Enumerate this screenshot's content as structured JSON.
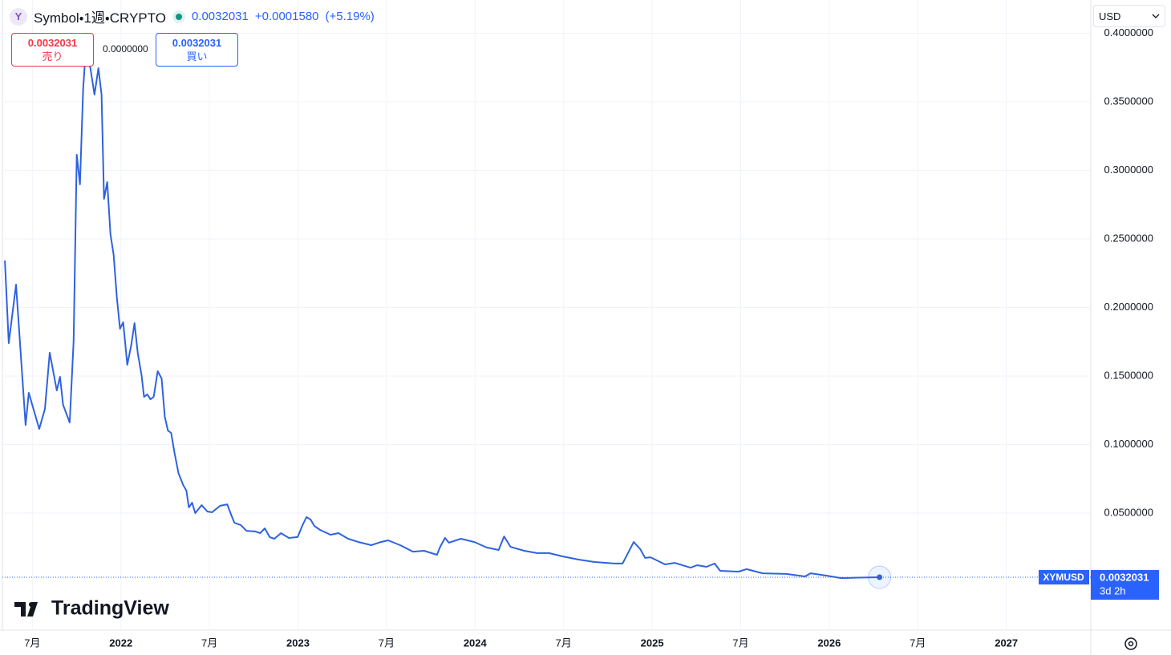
{
  "header": {
    "symbol": "Symbol・1週・CRYPTO",
    "icon": "Y",
    "price": "0.0032031",
    "change": "+0.0001580",
    "change_pct": "(+5.19%)"
  },
  "trade": {
    "sell_price": "0.0032031",
    "sell_label": "売り",
    "spread": "0.0000000",
    "buy_price": "0.0032031",
    "buy_label": "買い"
  },
  "currency": "USD",
  "branding": "TradingView",
  "chart_data": {
    "type": "line",
    "grid": true,
    "price_tag": {
      "symbol": "XYMUSD",
      "countdown": "3d 2h"
    },
    "xlim": [
      2021.331,
      2027.477
    ],
    "ylim": [
      -0.0348,
      0.4243
    ],
    "xticks": [
      {
        "value": 2021.5,
        "label": "7月"
      },
      2022,
      {
        "value": 2022.5,
        "label": "7月"
      },
      2023,
      {
        "value": 2023.5,
        "label": "7月"
      },
      2024,
      {
        "value": 2024.5,
        "label": "7月"
      },
      2025,
      {
        "value": 2025.5,
        "label": "7月"
      },
      2026,
      {
        "value": 2026.5,
        "label": "7月"
      },
      2027
    ],
    "yticks": [
      {
        "value": 0.05,
        "label": "0.0500000"
      },
      {
        "value": 0.1,
        "label": "0.1000000"
      },
      {
        "value": 0.15,
        "label": "0.1500000"
      },
      {
        "value": 0.2,
        "label": "0.2000000"
      },
      {
        "value": 0.25,
        "label": "0.2500000"
      },
      {
        "value": 0.3,
        "label": "0.3000000"
      },
      {
        "value": 0.35,
        "label": "0.3500000"
      },
      {
        "value": 0.4,
        "label": "0.4000000"
      }
    ],
    "series": [
      {
        "name": "XYMUSD",
        "color": "#2f62e0",
        "x": [
          2021.345,
          2021.367,
          2021.408,
          2021.462,
          2021.48,
          2021.539,
          2021.571,
          2021.598,
          2021.638,
          2021.656,
          2021.674,
          2021.711,
          2021.733,
          2021.751,
          2021.769,
          2021.787,
          2021.801,
          2021.828,
          2021.851,
          2021.873,
          2021.891,
          2021.905,
          2021.923,
          2021.941,
          2021.959,
          2021.977,
          2021.995,
          2022.013,
          2022.036,
          2022.059,
          2022.077,
          2022.095,
          2022.117,
          2022.131,
          2022.149,
          2022.167,
          2022.185,
          2022.208,
          2022.23,
          2022.248,
          2022.266,
          2022.284,
          2022.303,
          2022.325,
          2022.352,
          2022.37,
          2022.384,
          2022.402,
          2022.42,
          2022.456,
          2022.488,
          2022.515,
          2022.56,
          2022.601,
          2022.619,
          2022.641,
          2022.678,
          2022.709,
          2022.759,
          2022.786,
          2022.813,
          2022.84,
          2022.867,
          2022.904,
          2022.949,
          2022.998,
          2023.026,
          2023.048,
          2023.071,
          2023.093,
          2023.125,
          2023.184,
          2023.229,
          2023.283,
          2023.342,
          2023.414,
          2023.468,
          2023.509,
          2023.577,
          2023.649,
          2023.712,
          2023.785,
          2023.803,
          2023.83,
          2023.852,
          2023.92,
          2023.997,
          2024.065,
          2024.133,
          2024.164,
          2024.2,
          2024.277,
          2024.35,
          2024.417,
          2024.494,
          2024.585,
          2024.675,
          2024.788,
          2024.833,
          2024.896,
          2024.933,
          2024.96,
          2024.991,
          2025.073,
          2025.127,
          2025.217,
          2025.253,
          2025.307,
          2025.353,
          2025.384,
          2025.488,
          2025.533,
          2025.624,
          2025.759,
          2025.863,
          2025.895,
          2025.985,
          2026.067,
          2026.166,
          2026.284
        ],
        "values": [
          0.2342,
          0.174,
          0.2167,
          0.1143,
          0.1377,
          0.1114,
          0.126,
          0.167,
          0.1395,
          0.1494,
          0.1289,
          0.1161,
          0.1757,
          0.3114,
          0.2898,
          0.3599,
          0.3863,
          0.3746,
          0.3553,
          0.3746,
          0.3553,
          0.2792,
          0.2915,
          0.2535,
          0.2383,
          0.2079,
          0.1845,
          0.1892,
          0.1582,
          0.1728,
          0.1886,
          0.167,
          0.1506,
          0.1348,
          0.1366,
          0.133,
          0.1348,
          0.1535,
          0.1482,
          0.1202,
          0.1102,
          0.1085,
          0.0939,
          0.0792,
          0.0705,
          0.0664,
          0.0541,
          0.0576,
          0.05,
          0.0558,
          0.0512,
          0.0506,
          0.0553,
          0.0564,
          0.05,
          0.043,
          0.0412,
          0.0371,
          0.0366,
          0.0354,
          0.0389,
          0.0325,
          0.0313,
          0.0354,
          0.0319,
          0.0325,
          0.0412,
          0.0471,
          0.0453,
          0.0406,
          0.0377,
          0.0342,
          0.0354,
          0.0313,
          0.0289,
          0.0266,
          0.0289,
          0.0301,
          0.0266,
          0.0219,
          0.0225,
          0.0196,
          0.0254,
          0.0319,
          0.0284,
          0.0313,
          0.0289,
          0.0249,
          0.0231,
          0.033,
          0.0254,
          0.0225,
          0.0208,
          0.0208,
          0.0184,
          0.0161,
          0.0143,
          0.0132,
          0.0132,
          0.0289,
          0.0237,
          0.0173,
          0.0178,
          0.0126,
          0.0137,
          0.0102,
          0.012,
          0.0108,
          0.0132,
          0.0079,
          0.0073,
          0.0091,
          0.0061,
          0.0056,
          0.0038,
          0.0061,
          0.0044,
          0.0026,
          0.0029,
          0.0032031
        ]
      }
    ]
  }
}
